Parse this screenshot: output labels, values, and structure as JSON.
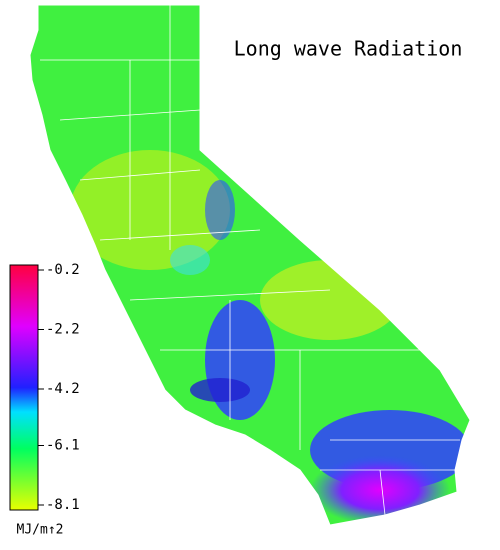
{
  "title": "Long wave Radiation",
  "colorbar": {
    "ticks": [
      -0.2,
      -2.2,
      -4.2,
      -6.1,
      -8.1
    ],
    "unit": "MJ/m↑2"
  }
}
